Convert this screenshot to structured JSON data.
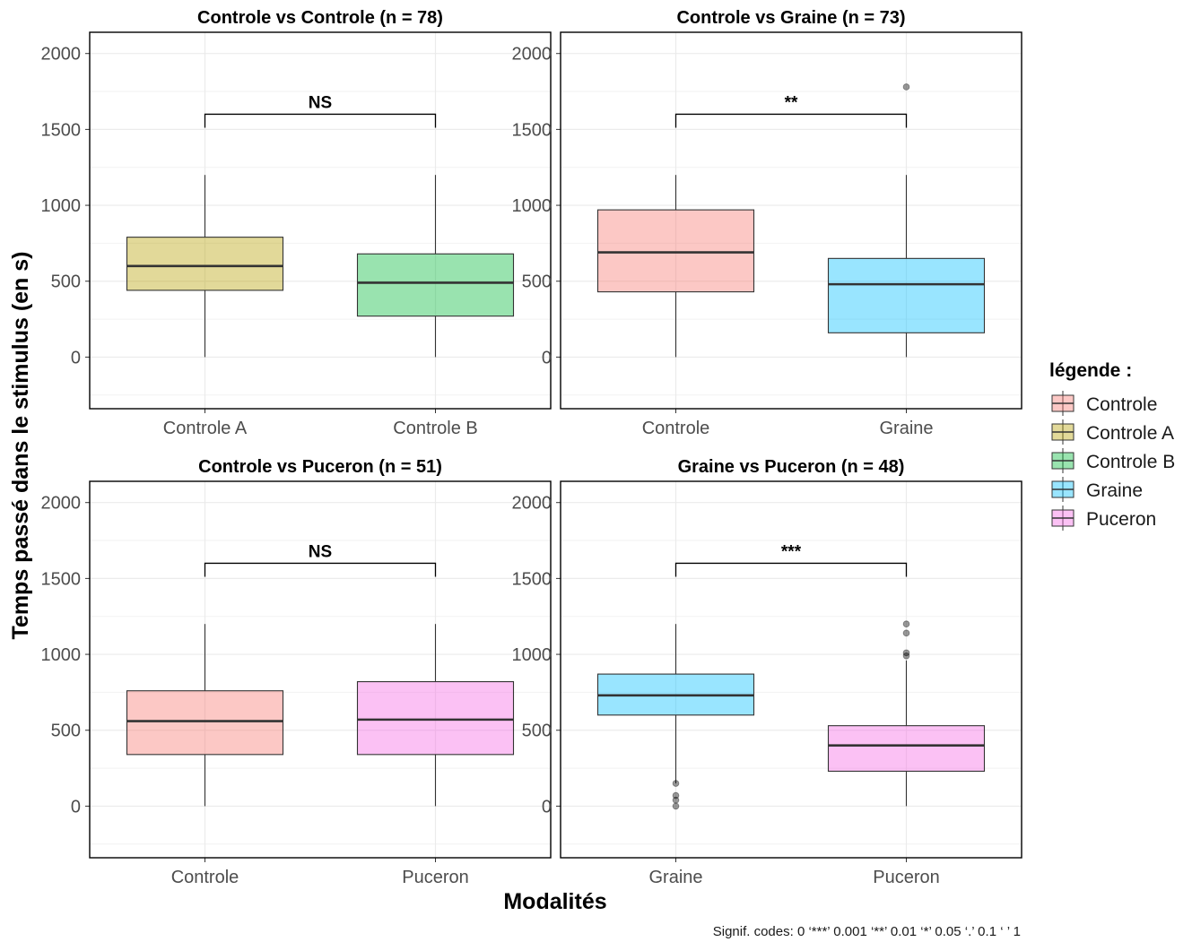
{
  "chart_data": {
    "type": "box",
    "y_label": "Temps passé dans le stimulus (en s)",
    "x_label": "Modalités",
    "caption": "Signif. codes:  0 ‘***’ 0.001 ‘**’ 0.01 ‘*’ 0.05 ‘.’ 0.1 ‘ ’ 1",
    "ylim": [
      -340,
      2140
    ],
    "y_ticks": [
      0,
      500,
      1000,
      1500,
      2000
    ],
    "grid": true,
    "legend": {
      "title": "légende :",
      "position": "right",
      "entries": [
        {
          "label": "Controle",
          "color": "#F8766D"
        },
        {
          "label": "Controle A",
          "color": "#B79F00"
        },
        {
          "label": "Controle B",
          "color": "#00BA38"
        },
        {
          "label": "Graine",
          "color": "#00BFFF"
        },
        {
          "label": "Puceron",
          "color": "#F564E3"
        }
      ]
    },
    "panels": [
      {
        "title": "Controle vs Controle (n = 78)",
        "significance": "NS",
        "bracket_y": 1600,
        "groups": [
          {
            "label": "Controle A",
            "color": "#B79F00",
            "whisker_low": 0,
            "q1": 440,
            "median": 600,
            "q3": 790,
            "whisker_high": 1200,
            "outliers": []
          },
          {
            "label": "Controle B",
            "color": "#00BA38",
            "whisker_low": 0,
            "q1": 270,
            "median": 490,
            "q3": 680,
            "whisker_high": 1200,
            "outliers": []
          }
        ]
      },
      {
        "title": "Controle vs Graine (n = 73)",
        "significance": "**",
        "bracket_y": 1600,
        "groups": [
          {
            "label": "Controle",
            "color": "#F8766D",
            "whisker_low": 0,
            "q1": 430,
            "median": 690,
            "q3": 970,
            "whisker_high": 1200,
            "outliers": []
          },
          {
            "label": "Graine",
            "color": "#00BFFF",
            "whisker_low": 0,
            "q1": 160,
            "median": 480,
            "q3": 650,
            "whisker_high": 1200,
            "outliers": [
              1780
            ]
          }
        ]
      },
      {
        "title": "Controle vs Puceron (n = 51)",
        "significance": "NS",
        "bracket_y": 1600,
        "groups": [
          {
            "label": "Controle",
            "color": "#F8766D",
            "whisker_low": 0,
            "q1": 340,
            "median": 560,
            "q3": 760,
            "whisker_high": 1200,
            "outliers": []
          },
          {
            "label": "Puceron",
            "color": "#F564E3",
            "whisker_low": 0,
            "q1": 340,
            "median": 570,
            "q3": 820,
            "whisker_high": 1200,
            "outliers": []
          }
        ]
      },
      {
        "title": "Graine vs Puceron (n = 48)",
        "significance": "***",
        "bracket_y": 1600,
        "groups": [
          {
            "label": "Graine",
            "color": "#00BFFF",
            "whisker_low": 150,
            "q1": 600,
            "median": 730,
            "q3": 870,
            "whisker_high": 1200,
            "outliers": [
              150,
              70,
              40,
              0
            ]
          },
          {
            "label": "Puceron",
            "color": "#F564E3",
            "whisker_low": 0,
            "q1": 230,
            "median": 400,
            "q3": 530,
            "whisker_high": 960,
            "outliers": [
              990,
              1010,
              1140,
              1200
            ]
          }
        ]
      }
    ]
  }
}
